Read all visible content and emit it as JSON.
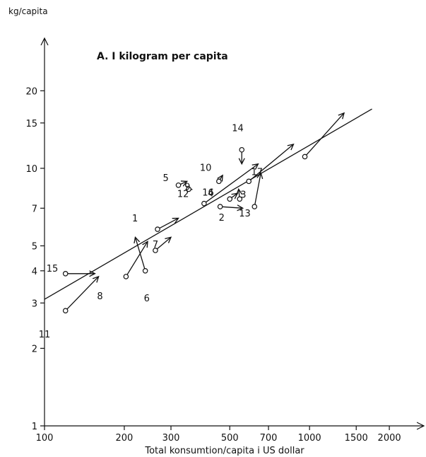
{
  "chart_data": {
    "type": "scatter",
    "title": "A. I kilogram per capita",
    "ylabel": "kg/capita",
    "xlabel": "Total konsumtion/capita i US dollar",
    "x_scale": "log",
    "y_scale": "log",
    "xlim": [
      100,
      2700
    ],
    "ylim": [
      1,
      32
    ],
    "x_ticks": [
      {
        "value": 100,
        "label": "100"
      },
      {
        "value": 200,
        "label": "200"
      },
      {
        "value": 300,
        "label": "300"
      },
      {
        "value": 500,
        "label": "500"
      },
      {
        "value": 700,
        "label": "700"
      },
      {
        "value": 1000,
        "label": "1000"
      },
      {
        "value": 1500,
        "label": "1500"
      },
      {
        "value": 2000,
        "label": "2000"
      }
    ],
    "y_ticks": [
      {
        "value": 1,
        "label": "1"
      },
      {
        "value": 2,
        "label": "2"
      },
      {
        "value": 3,
        "label": "3"
      },
      {
        "value": 4,
        "label": "4"
      },
      {
        "value": 5,
        "label": "5"
      },
      {
        "value": 7,
        "label": "7"
      },
      {
        "value": 10,
        "label": "10"
      },
      {
        "value": 15,
        "label": "15"
      },
      {
        "value": 20,
        "label": "20"
      }
    ],
    "trend_line": {
      "x": [
        100,
        1720
      ],
      "y": [
        3.1,
        17.0
      ]
    },
    "countries": [
      {
        "label": "1",
        "start": [
          267,
          5.8
        ],
        "end": [
          320,
          6.4
        ]
      },
      {
        "label": "2",
        "start": [
          460,
          7.1
        ],
        "end": [
          560,
          7.0
        ]
      },
      {
        "label": "3",
        "start": [
          545,
          7.6
        ],
        "end": [
          540,
          8.3
        ]
      },
      {
        "label": "4",
        "start": [
          500,
          7.6
        ],
        "end": [
          535,
          8.0
        ]
      },
      {
        "label": "5",
        "start": [
          320,
          8.6
        ],
        "end": [
          345,
          8.9
        ]
      },
      {
        "label": "6",
        "start": [
          240,
          4.0
        ],
        "end": [
          220,
          5.4
        ]
      },
      {
        "label": "7",
        "start": [
          262,
          4.8
        ],
        "end": [
          300,
          5.4
        ]
      },
      {
        "label": "8",
        "start": [
          203,
          3.8
        ],
        "end": [
          245,
          5.2
        ]
      },
      {
        "label": "9",
        "start": [
          350,
          8.3
        ],
        "end": [
          345,
          8.5
        ]
      },
      {
        "label": "10",
        "start": [
          455,
          8.9
        ],
        "end": [
          470,
          9.4
        ]
      },
      {
        "label": "11",
        "start": [
          120,
          2.8
        ],
        "end": [
          160,
          3.8
        ]
      },
      {
        "label": "12",
        "start": [
          400,
          7.3
        ],
        "end": [
          640,
          10.4
        ]
      },
      {
        "label": "13",
        "start": [
          620,
          7.1
        ],
        "end": [
          655,
          9.6
        ]
      },
      {
        "label": "14",
        "start": [
          555,
          11.8
        ],
        "end": [
          555,
          10.4
        ]
      },
      {
        "label": "15",
        "start": [
          120,
          3.9
        ],
        "end": [
          155,
          3.9
        ]
      },
      {
        "label": "16",
        "start": [
          590,
          8.9
        ],
        "end": [
          870,
          12.4
        ]
      },
      {
        "label": "17",
        "start": [
          960,
          11.1
        ],
        "end": [
          1350,
          16.4
        ]
      }
    ]
  }
}
